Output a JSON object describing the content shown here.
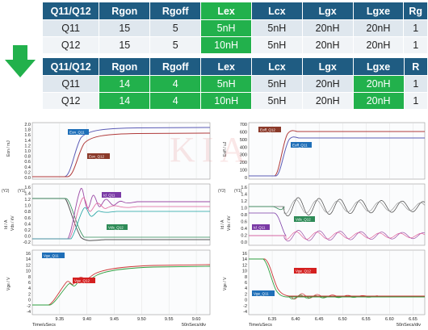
{
  "tables": {
    "before": {
      "headers": [
        "Q11/Q12",
        "Rgon",
        "Rgoff",
        "Lex",
        "Lcx",
        "Lgx",
        "Lgxe",
        "Rg"
      ],
      "rows": [
        [
          "Q11",
          "15",
          "5",
          "5nH",
          "5nH",
          "20nH",
          "20nH",
          "1"
        ],
        [
          "Q12",
          "15",
          "5",
          "10nH",
          "5nH",
          "20nH",
          "20nH",
          "1"
        ]
      ]
    },
    "after": {
      "headers": [
        "Q11/Q12",
        "Rgon",
        "Rgoff",
        "Lex",
        "Lcx",
        "Lgx",
        "Lgxe",
        "R"
      ],
      "rows": [
        [
          "Q11",
          "14",
          "4",
          "5nH",
          "5nH",
          "20nH",
          "20nH",
          "1"
        ],
        [
          "Q12",
          "14",
          "4",
          "10nH",
          "5nH",
          "20nH",
          "20nH",
          "1"
        ]
      ]
    }
  },
  "colors": {
    "header": "#1f5c82",
    "highlight": "#22b14c",
    "arrow": "#22b14c"
  },
  "arrow_icon": "down-arrow-icon",
  "watermark": "KIA",
  "left_plot": {
    "eon": {
      "yaxis": "Eon / mJ",
      "ticks": [
        "2.0",
        "1.8",
        "1.6",
        "1.4",
        "1.2",
        "1.0",
        "0.8",
        "0.6",
        "0.4",
        "0.2",
        "0.0"
      ],
      "tags": [
        "Eon_Q11",
        "Eon_Q12"
      ]
    },
    "ic": {
      "y2": "(Y2)",
      "y1": "(Y1)",
      "yaxis": "Id / A",
      "yaxis2": "Vds / kV",
      "ticks": [
        "1.6",
        "1.4",
        "1.2",
        "1.0",
        "0.8",
        "0.6",
        "0.4",
        "0.2",
        "0.0",
        "-0.2"
      ],
      "tags": [
        "Id_Q11",
        "Vds_Q12"
      ]
    },
    "vge": {
      "yaxis": "Vge / V",
      "ticks": [
        "16",
        "14",
        "12",
        "10",
        "8",
        "6",
        "4",
        "2",
        "0",
        "-2",
        "-4"
      ],
      "tags": [
        "Vge_Q11",
        "Vge_Q12"
      ]
    },
    "xticks": [
      "9.35",
      "9.40",
      "9.45",
      "9.50",
      "9.55",
      "9.60"
    ],
    "xlabel": "Time/uSecs",
    "xscale": "50nSecs/div"
  },
  "right_plot": {
    "eoff": {
      "yaxis": "Eoff / uJ",
      "ticks": [
        "700",
        "600",
        "500",
        "400",
        "300",
        "200",
        "100",
        "0"
      ],
      "tags": [
        "Eoff_Q12",
        "Eoff_Q11"
      ]
    },
    "ic": {
      "y2": "(Y2)",
      "y1": "(Y1)",
      "yaxis": "Id / A",
      "yaxis2": "Vds / kV",
      "ticks": [
        "1.6",
        "1.4",
        "1.2",
        "1.0",
        "0.8",
        "0.6",
        "0.4",
        "0.2",
        "0.0"
      ],
      "tags": [
        "Vds_Q12",
        "Id_Q11"
      ]
    },
    "vge": {
      "yaxis": "Vge / V",
      "ticks": [
        "16",
        "14",
        "12",
        "10",
        "8",
        "6",
        "4",
        "2",
        "0",
        "-2",
        "-4"
      ],
      "tags": [
        "Vge_Q12",
        "Vge_Q11"
      ]
    },
    "xticks": [
      "6.35",
      "6.40",
      "6.45",
      "6.50",
      "6.55",
      "6.60",
      "6.65"
    ],
    "xlabel": "Time/uSecs",
    "xscale": "50nSecs/div"
  }
}
